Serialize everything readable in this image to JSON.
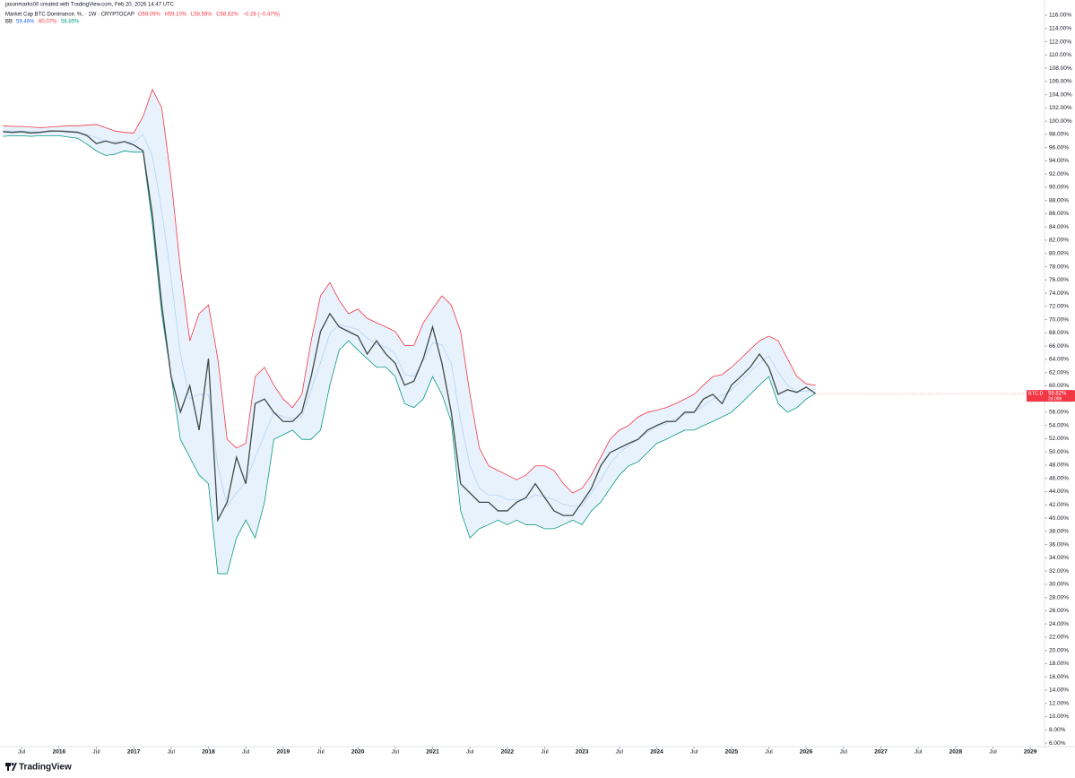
{
  "chart_data": {
    "type": "line",
    "attribution": "jasonmarks00 created with TradingView.com, Feb 20, 2026 14:47 UTC",
    "title": "Market Cap BTC Dominance, %, · 1W · CRYPTOCAP",
    "ohlc_labels": [
      "O59.09%",
      "H59.10%",
      "L58.56%",
      "C58.82%",
      "−0.28 (−0.47%)"
    ],
    "bb_label": "BB",
    "bb_values": [
      "59.46%",
      "60.07%",
      "58.85%"
    ],
    "price_label": {
      "symbol": "BTC.D",
      "value": "58.82%",
      "countdown": "2d 09h"
    },
    "footer": "TradingView",
    "x": [
      2015.25,
      2015.375,
      2015.5,
      2015.625,
      2015.75,
      2015.875,
      2016,
      2016.125,
      2016.25,
      2016.375,
      2016.5,
      2016.625,
      2016.75,
      2016.875,
      2017,
      2017.125,
      2017.25,
      2017.375,
      2017.5,
      2017.625,
      2017.75,
      2017.875,
      2018,
      2018.125,
      2018.25,
      2018.375,
      2018.5,
      2018.625,
      2018.75,
      2018.875,
      2019,
      2019.125,
      2019.25,
      2019.375,
      2019.5,
      2019.625,
      2019.75,
      2019.875,
      2020,
      2020.125,
      2020.25,
      2020.375,
      2020.5,
      2020.625,
      2020.75,
      2020.875,
      2021,
      2021.125,
      2021.25,
      2021.375,
      2021.5,
      2021.625,
      2021.75,
      2021.875,
      2022,
      2022.125,
      2022.25,
      2022.375,
      2022.5,
      2022.625,
      2022.75,
      2022.875,
      2023,
      2023.125,
      2023.25,
      2023.375,
      2023.5,
      2023.625,
      2023.75,
      2023.875,
      2024,
      2024.125,
      2024.25,
      2024.375,
      2024.5,
      2024.625,
      2024.75,
      2024.875,
      2025,
      2025.125,
      2025.25,
      2025.375,
      2025.5,
      2025.625,
      2025.75,
      2025.875,
      2026,
      2026.125
    ],
    "series": [
      {
        "color": "#b3d4f5",
        "values": [
          98.5,
          98.5,
          98.5,
          98.4,
          98.4,
          98.4,
          98.5,
          98.5,
          98.4,
          98,
          97.5,
          96.9,
          96.8,
          96.9,
          96.8,
          98,
          94.6,
          86.5,
          76.3,
          64.8,
          58,
          58.7,
          58.7,
          47.9,
          41.8,
          43.8,
          45.5,
          49.2,
          52.6,
          56,
          55.3,
          55,
          55.3,
          59.4,
          63.5,
          67.9,
          69.2,
          68.9,
          68.5,
          67.2,
          66.2,
          65.9,
          64.8,
          61.7,
          61.4,
          63.8,
          66.5,
          66.2,
          63.4,
          54.7,
          47.9,
          44.5,
          43.5,
          43.5,
          42.8,
          42.8,
          42.8,
          43.5,
          43.2,
          42.8,
          42.1,
          41.8,
          41.8,
          43.8,
          45.8,
          48.2,
          49.9,
          51,
          51.9,
          53,
          53.8,
          54.3,
          55,
          55.7,
          56,
          57,
          58,
          58.5,
          59.4,
          60.7,
          62.1,
          63.5,
          64.5,
          62.1,
          60.1,
          59.1,
          59.2,
          59.46
        ]
      },
      {
        "color": "#f23645",
        "values": [
          99.3,
          99.2,
          99.2,
          99.1,
          99.0,
          99.1,
          99.2,
          99.3,
          99.3,
          99.4,
          99.5,
          99,
          98.5,
          98.3,
          98.2,
          100.7,
          104.8,
          102,
          91.2,
          77.7,
          66.8,
          70.9,
          72.2,
          64.1,
          51.9,
          50.6,
          51.3,
          61.4,
          62.8,
          60.1,
          58,
          56.7,
          58.7,
          66.8,
          73.6,
          75.6,
          72.9,
          70.9,
          71.6,
          70.2,
          69.5,
          68.9,
          68.2,
          66.1,
          66.1,
          69.5,
          71.6,
          73.6,
          72.2,
          68.2,
          58.7,
          50.6,
          47.9,
          47.2,
          46.5,
          45.8,
          46.5,
          47.9,
          47.9,
          47.2,
          45.2,
          43.8,
          44.5,
          46.5,
          49.2,
          51.9,
          53.3,
          54,
          55.3,
          56,
          56.3,
          56.7,
          57.3,
          58,
          58.7,
          60.1,
          61.4,
          61.7,
          62.8,
          64.1,
          65.5,
          66.8,
          67.5,
          66.8,
          64.1,
          61.4,
          60.3,
          60.07
        ]
      },
      {
        "color": "#089981",
        "values": [
          97.7,
          97.8,
          97.8,
          97.7,
          97.8,
          97.8,
          97.8,
          97.6,
          97.4,
          96.5,
          95.5,
          94.8,
          95,
          95.5,
          95.3,
          95.3,
          84.4,
          70.9,
          61.4,
          51.9,
          49.2,
          46.5,
          45.2,
          31.6,
          31.6,
          37,
          39.7,
          37,
          42.4,
          51.9,
          52.6,
          53.3,
          51.9,
          51.9,
          53.3,
          60.1,
          65.4,
          66.8,
          65.4,
          64.1,
          62.8,
          62.8,
          61.4,
          57.3,
          56.7,
          58,
          61.4,
          58.7,
          54.6,
          41.1,
          37,
          38.4,
          39,
          39.7,
          39,
          39.7,
          39,
          39,
          38.4,
          38.4,
          39,
          39.7,
          39,
          41.1,
          42.4,
          44.5,
          46.5,
          47.9,
          48.5,
          49.9,
          51.3,
          51.9,
          52.6,
          53.3,
          53.3,
          54,
          54.6,
          55.3,
          56,
          57.3,
          58.7,
          60.1,
          61.4,
          57.3,
          56,
          56.7,
          58,
          58.85
        ]
      },
      {
        "color": "#3f4a47",
        "values": [
          98.4,
          98.3,
          98.4,
          98.2,
          98.3,
          98.5,
          98.5,
          98.4,
          98.3,
          97.8,
          96.6,
          97,
          96.6,
          96.9,
          96.4,
          95.5,
          85.8,
          72.2,
          61.4,
          56,
          60,
          53.3,
          64.1,
          39.7,
          42.4,
          49.2,
          45.2,
          57.3,
          58,
          56,
          54.6,
          54.6,
          56,
          61.4,
          68.2,
          70.9,
          68.9,
          68.2,
          67.5,
          64.8,
          66.8,
          64.8,
          63.4,
          60.1,
          60.7,
          64.1,
          68.9,
          63.4,
          56,
          45.2,
          43.8,
          42.4,
          42.4,
          41.1,
          41.1,
          42.4,
          43.1,
          45.2,
          43.1,
          41.1,
          40.4,
          40.4,
          42.4,
          44.5,
          47.9,
          49.9,
          50.6,
          51.3,
          51.9,
          53.3,
          54,
          54.6,
          54.6,
          56,
          56,
          58,
          58.7,
          57.3,
          60.1,
          61.4,
          62.8,
          64.8,
          62.8,
          58.7,
          59.4,
          59,
          59.8,
          58.82
        ]
      }
    ],
    "band_fill": "#e8f2fc",
    "price_color": "#f23645",
    "xlim": [
      2015.21,
      2029.19
    ],
    "ylim": [
      5.6,
      116.95
    ],
    "grid": false,
    "xticks": [
      {
        "value": 2015.5,
        "label": "Jul"
      },
      2016,
      {
        "value": 2016.5,
        "label": "Jul"
      },
      2017,
      {
        "value": 2017.5,
        "label": "Jul"
      },
      2018,
      {
        "value": 2018.5,
        "label": "Jul"
      },
      2019,
      {
        "value": 2019.5,
        "label": "Jul"
      },
      2020,
      {
        "value": 2020.5,
        "label": "Jul"
      },
      2021,
      {
        "value": 2021.5,
        "label": "Jul"
      },
      2022,
      {
        "value": 2022.5,
        "label": "Jul"
      },
      2023,
      {
        "value": 2023.5,
        "label": "Jul"
      },
      2024,
      {
        "value": 2024.5,
        "label": "Jul"
      },
      2025,
      {
        "value": 2025.5,
        "label": "Jul"
      },
      2026,
      {
        "value": 2026.5,
        "label": "Jul"
      },
      2027,
      {
        "value": 2027.5,
        "label": "Jul"
      },
      2028,
      {
        "value": 2028.5,
        "label": "Jul"
      },
      2029
    ],
    "yticks": [
      {
        "value": 6,
        "label": "6.00%"
      },
      {
        "value": 8,
        "label": "8.00%"
      },
      {
        "value": 10,
        "label": "10.00%"
      },
      {
        "value": 12,
        "label": "12.00%"
      },
      {
        "value": 14,
        "label": "14.00%"
      },
      {
        "value": 16,
        "label": "16.00%"
      },
      {
        "value": 18,
        "label": "18.00%"
      },
      {
        "value": 20,
        "label": "20.00%"
      },
      {
        "value": 22,
        "label": "22.00%"
      },
      {
        "value": 24,
        "label": "24.00%"
      },
      {
        "value": 26,
        "label": "26.00%"
      },
      {
        "value": 28,
        "label": "28.00%"
      },
      {
        "value": 30,
        "label": "30.00%"
      },
      {
        "value": 32,
        "label": "32.00%"
      },
      {
        "value": 34,
        "label": "34.00%"
      },
      {
        "value": 36,
        "label": "36.00%"
      },
      {
        "value": 38,
        "label": "38.00%"
      },
      {
        "value": 40,
        "label": "40.00%"
      },
      {
        "value": 42,
        "label": "42.00%"
      },
      {
        "value": 44,
        "label": "44.00%"
      },
      {
        "value": 46,
        "label": "46.00%"
      },
      {
        "value": 48,
        "label": "48.00%"
      },
      {
        "value": 50,
        "label": "50.00%"
      },
      {
        "value": 52,
        "label": "52.00%"
      },
      {
        "value": 54,
        "label": "54.00%"
      },
      {
        "value": 56,
        "label": "56.00%"
      },
      {
        "value": 58,
        "label": "58.00%"
      },
      {
        "value": 60,
        "label": "60.00%"
      },
      {
        "value": 62,
        "label": "62.00%"
      },
      {
        "value": 64,
        "label": "64.00%"
      },
      {
        "value": 66,
        "label": "66.00%"
      },
      {
        "value": 68,
        "label": "68.00%"
      },
      {
        "value": 70,
        "label": "70.00%"
      },
      {
        "value": 72,
        "label": "72.00%"
      },
      {
        "value": 74,
        "label": "74.00%"
      },
      {
        "value": 76,
        "label": "76.00%"
      },
      {
        "value": 78,
        "label": "78.00%"
      },
      {
        "value": 80,
        "label": "80.00%"
      },
      {
        "value": 82,
        "label": "82.00%"
      },
      {
        "value": 84,
        "label": "84.00%"
      },
      {
        "value": 86,
        "label": "86.00%"
      },
      {
        "value": 88,
        "label": "88.00%"
      },
      {
        "value": 90,
        "label": "90.00%"
      },
      {
        "value": 92,
        "label": "92.00%"
      },
      {
        "value": 94,
        "label": "94.00%"
      },
      {
        "value": 96,
        "label": "96.00%"
      },
      {
        "value": 98,
        "label": "98.00%"
      },
      {
        "value": 100,
        "label": "100.00%"
      },
      {
        "value": 102,
        "label": "102.00%"
      },
      {
        "value": 104,
        "label": "104.00%"
      },
      {
        "value": 106,
        "label": "106.00%"
      },
      {
        "value": 108,
        "label": "108.00%"
      },
      {
        "value": 110,
        "label": "110.00%"
      },
      {
        "value": 112,
        "label": "112.00%"
      },
      {
        "value": 114,
        "label": "114.00%"
      },
      {
        "value": 116,
        "label": "116.00%"
      }
    ]
  }
}
